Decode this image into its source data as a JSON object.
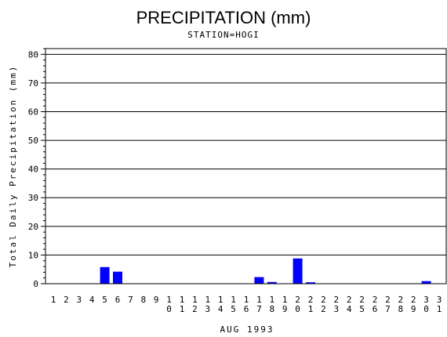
{
  "chart_data": {
    "type": "bar",
    "title": "PRECIPITATION (mm)",
    "subtitle": "STATION=HOGI",
    "xlabel": "AUG 1993",
    "ylabel": "Total Daily Precipitation (mm)",
    "ylim": [
      0,
      82
    ],
    "yticks": [
      0,
      10,
      20,
      30,
      40,
      50,
      60,
      70,
      80
    ],
    "grid": true,
    "bar_color": "#0000ff",
    "categories": [
      "1",
      "2",
      "3",
      "4",
      "5",
      "6",
      "7",
      "8",
      "9",
      "10",
      "11",
      "12",
      "13",
      "14",
      "15",
      "16",
      "17",
      "18",
      "19",
      "20",
      "21",
      "22",
      "23",
      "24",
      "25",
      "26",
      "27",
      "28",
      "29",
      "30",
      "31"
    ],
    "values": [
      0,
      0,
      0,
      0,
      5.8,
      4.2,
      0,
      0,
      0,
      0,
      0,
      0,
      0,
      0,
      0,
      0,
      2.3,
      0.6,
      0,
      8.8,
      0.5,
      0,
      0,
      0,
      0,
      0,
      0,
      0,
      0,
      0.9,
      0
    ]
  }
}
